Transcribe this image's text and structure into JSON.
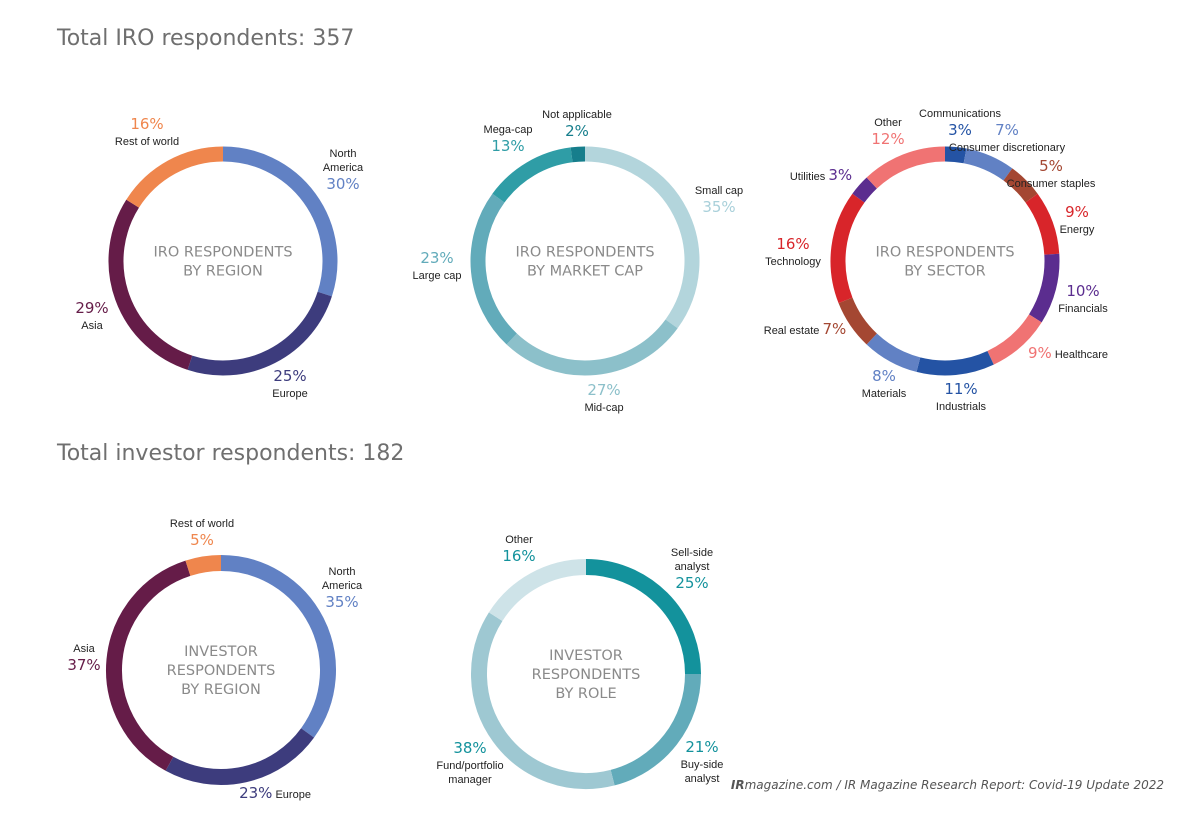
{
  "section_titles": {
    "iro": "Total IRO respondents: 357",
    "investor": "Total investor respondents: 182"
  },
  "footer": {
    "brand": "IR",
    "rest": "magazine.com / IR Magazine Research Report: Covid-19 Update 2022"
  },
  "chart_data": [
    {
      "type": "pie",
      "variant": "donut",
      "center_label": [
        "IRO RESPONDENTS",
        "BY REGION"
      ],
      "slices": [
        {
          "label": "North America",
          "label_lines": [
            "North",
            "America"
          ],
          "value": 30,
          "pct": "30%",
          "color": "#6181c4",
          "label_color": "#6181c4"
        },
        {
          "label": "Europe",
          "label_lines": [
            "Europe"
          ],
          "value": 25,
          "pct": "25%",
          "color": "#3d3c7d",
          "label_color": "#3d3c7d"
        },
        {
          "label": "Asia",
          "label_lines": [
            "Asia"
          ],
          "value": 29,
          "pct": "29%",
          "color": "#651c48",
          "label_color": "#651c48"
        },
        {
          "label": "Rest of world",
          "label_lines": [
            "Rest of world"
          ],
          "value": 16,
          "pct": "16%",
          "color": "#ef864d",
          "label_color": "#ef864d"
        }
      ]
    },
    {
      "type": "pie",
      "variant": "donut",
      "center_label": [
        "IRO RESPONDENTS",
        "BY MARKET CAP"
      ],
      "slices": [
        {
          "label": "Small cap",
          "label_lines": [
            "Small cap"
          ],
          "value": 35,
          "pct": "35%",
          "color": "#b3d5dc",
          "label_color": "#a9d0da"
        },
        {
          "label": "Mid-cap",
          "label_lines": [
            "Mid-cap"
          ],
          "value": 27,
          "pct": "27%",
          "color": "#8cc0ca",
          "label_color": "#8cc0ca"
        },
        {
          "label": "Large cap",
          "label_lines": [
            "Large cap"
          ],
          "value": 23,
          "pct": "23%",
          "color": "#62abba",
          "label_color": "#62abba"
        },
        {
          "label": "Mega-cap",
          "label_lines": [
            "Mega-cap"
          ],
          "value": 13,
          "pct": "13%",
          "color": "#2f9da6",
          "label_color": "#2f9da6"
        },
        {
          "label": "Not applicable",
          "label_lines": [
            "Not applicable"
          ],
          "value": 2,
          "pct": "2%",
          "color": "#167e8c",
          "label_color": "#167e8c"
        }
      ]
    },
    {
      "type": "pie",
      "variant": "donut",
      "center_label": [
        "IRO RESPONDENTS",
        "BY SECTOR"
      ],
      "slices": [
        {
          "label": "Communications",
          "label_lines": [
            "Communications"
          ],
          "value": 3,
          "pct": "3%",
          "color": "#2453a4",
          "label_color": "#2453a4"
        },
        {
          "label": "Consumer discretionary",
          "label_lines": [
            "Consumer discretionary"
          ],
          "value": 7,
          "pct": "7%",
          "color": "#6181c4",
          "label_color": "#6181c4"
        },
        {
          "label": "Consumer staples",
          "label_lines": [
            "Consumer staples"
          ],
          "value": 5,
          "pct": "5%",
          "color": "#a44732",
          "label_color": "#a44732"
        },
        {
          "label": "Energy",
          "label_lines": [
            "Energy"
          ],
          "value": 9,
          "pct": "9%",
          "color": "#d8252a",
          "label_color": "#d8252a"
        },
        {
          "label": "Financials",
          "label_lines": [
            "Financials"
          ],
          "value": 10,
          "pct": "10%",
          "color": "#5b2d8f",
          "label_color": "#5b2d8f"
        },
        {
          "label": "Healthcare",
          "label_lines": [
            "Healthcare"
          ],
          "value": 9,
          "pct": "9%",
          "color": "#f07373",
          "label_color": "#f07373"
        },
        {
          "label": "Industrials",
          "label_lines": [
            "Industrials"
          ],
          "value": 11,
          "pct": "11%",
          "color": "#2453a4",
          "label_color": "#2453a4"
        },
        {
          "label": "Materials",
          "label_lines": [
            "Materials"
          ],
          "value": 8,
          "pct": "8%",
          "color": "#6181c4",
          "label_color": "#6181c4"
        },
        {
          "label": "Real estate",
          "label_lines": [
            "Real estate"
          ],
          "value": 7,
          "pct": "7%",
          "color": "#a44732",
          "label_color": "#a44732"
        },
        {
          "label": "Technology",
          "label_lines": [
            "Technology"
          ],
          "value": 16,
          "pct": "16%",
          "color": "#d8252a",
          "label_color": "#d8252a"
        },
        {
          "label": "Utilities",
          "label_lines": [
            "Utilities"
          ],
          "value": 3,
          "pct": "3%",
          "color": "#5b2d8f",
          "label_color": "#5b2d8f"
        },
        {
          "label": "Other",
          "label_lines": [
            "Other"
          ],
          "value": 12,
          "pct": "12%",
          "color": "#f07373",
          "label_color": "#f07373"
        }
      ]
    },
    {
      "type": "pie",
      "variant": "donut",
      "center_label": [
        "INVESTOR",
        "RESPONDENTS",
        "BY REGION"
      ],
      "slices": [
        {
          "label": "North America",
          "label_lines": [
            "North",
            "America"
          ],
          "value": 35,
          "pct": "35%",
          "color": "#6181c4",
          "label_color": "#6181c4"
        },
        {
          "label": "Europe",
          "label_lines": [
            "Europe"
          ],
          "value": 23,
          "pct": "23%",
          "color": "#3d3c7d",
          "label_color": "#3d3c7d"
        },
        {
          "label": "Asia",
          "label_lines": [
            "Asia"
          ],
          "value": 37,
          "pct": "37%",
          "color": "#651c48",
          "label_color": "#651c48"
        },
        {
          "label": "Rest of world",
          "label_lines": [
            "Rest of world"
          ],
          "value": 5,
          "pct": "5%",
          "color": "#ef864d",
          "label_color": "#ef864d"
        }
      ]
    },
    {
      "type": "pie",
      "variant": "donut",
      "center_label": [
        "INVESTOR",
        "RESPONDENTS",
        "BY ROLE"
      ],
      "slices": [
        {
          "label": "Sell-side analyst",
          "label_lines": [
            "Sell-side",
            "analyst"
          ],
          "value": 25,
          "pct": "25%",
          "color": "#13929c",
          "label_color": "#13929c"
        },
        {
          "label": "Buy-side analyst",
          "label_lines": [
            "Buy-side",
            "analyst"
          ],
          "value": 21,
          "pct": "21%",
          "color": "#62abba",
          "label_color": "#13929c"
        },
        {
          "label": "Fund/portfolio manager",
          "label_lines": [
            "Fund/portfolio",
            "manager"
          ],
          "value": 38,
          "pct": "38%",
          "color": "#9ec8d2",
          "label_color": "#13929c"
        },
        {
          "label": "Other",
          "label_lines": [
            "Other"
          ],
          "value": 16,
          "pct": "16%",
          "color": "#cee3e8",
          "label_color": "#13929c"
        }
      ]
    }
  ]
}
